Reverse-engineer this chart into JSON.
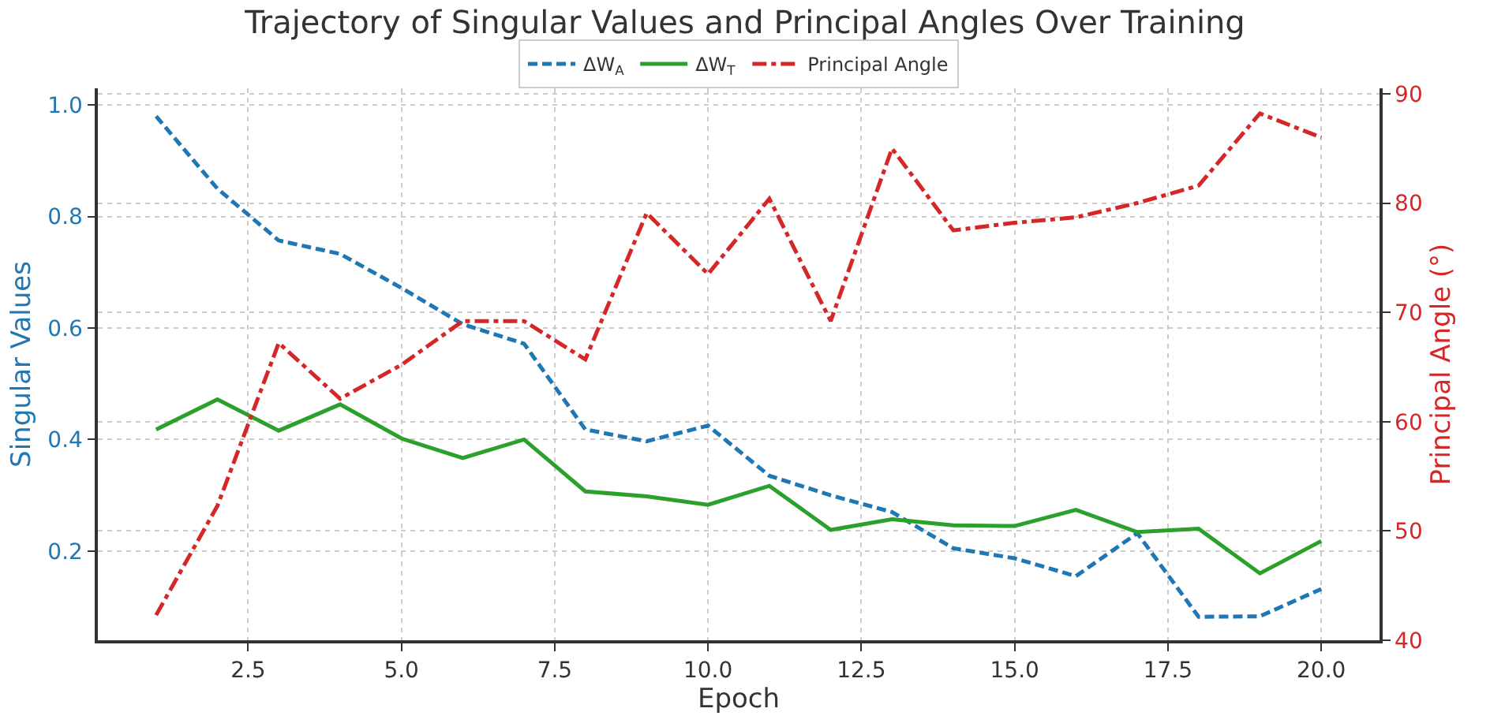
{
  "chart_data": {
    "type": "line",
    "title": "Trajectory of Singular Values and Principal Angles Over Training",
    "xlabel": "Epoch",
    "ylabel": "Singular Values",
    "y2label": "Principal Angle (°)",
    "x": [
      1,
      2,
      3,
      4,
      5,
      6,
      7,
      8,
      9,
      10,
      11,
      12,
      13,
      14,
      15,
      16,
      17,
      18,
      19,
      20
    ],
    "series": [
      {
        "name": "ΔW$_{A}$",
        "color": "#1f77b4",
        "line_style": "dashed",
        "values": [
          0.98,
          0.85,
          0.757,
          0.733,
          0.672,
          0.607,
          0.572,
          0.418,
          0.397,
          0.425,
          0.335,
          0.3,
          0.27,
          0.205,
          0.187,
          0.155,
          0.232,
          0.082,
          0.083,
          0.132
        ]
      },
      {
        "name": "ΔW$_{T}$",
        "color": "#2ca02c",
        "line_style": "solid",
        "values": [
          0.418,
          0.472,
          0.416,
          0.463,
          0.402,
          0.367,
          0.4,
          0.307,
          0.298,
          0.283,
          0.317,
          0.238,
          0.257,
          0.246,
          0.245,
          0.274,
          0.234,
          0.24,
          0.16,
          0.218
        ]
      },
      {
        "name": "Principal Angle",
        "color": "#d62728",
        "line_style": "dashdot",
        "axis": "y2",
        "values": [
          42.3,
          52.3,
          67.2,
          62.1,
          65.2,
          69.2,
          69.2,
          65.7,
          79.1,
          73.5,
          80.4,
          69.2,
          85.0,
          77.5,
          78.2,
          78.7,
          80.0,
          81.6,
          88.2,
          86.0
        ]
      }
    ],
    "xlim": [
      0.05,
      20.95
    ],
    "xticks": [
      2.5,
      {
        "value": 5,
        "label": "5.0"
      },
      7.5,
      {
        "value": 10,
        "label": "10.0"
      },
      12.5,
      {
        "value": 15,
        "label": "15.0"
      },
      17.5,
      {
        "value": 20,
        "label": "20.0"
      }
    ],
    "ylim": [
      0.04,
      1.03
    ],
    "yticks": [
      0.2,
      0.4,
      0.6,
      0.8,
      {
        "value": 1,
        "label": "1.0"
      }
    ],
    "y2lim": [
      40,
      90.5
    ],
    "y2ticks": [
      40,
      50,
      60,
      70,
      80,
      90
    ],
    "grid": true,
    "legend": "top",
    "marker": "none"
  }
}
